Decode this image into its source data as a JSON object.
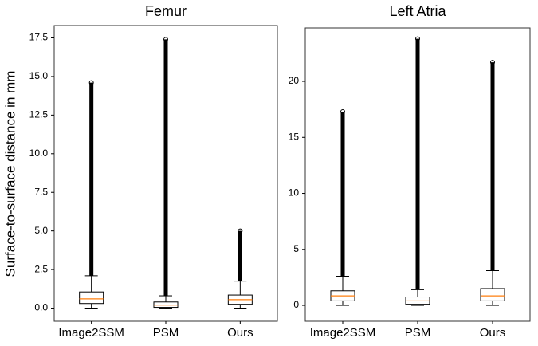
{
  "chart_data": [
    {
      "type": "box",
      "title": "Femur",
      "ylabel": "Surface-to-surface distance in mm",
      "categories": [
        "Image2SSM",
        "PSM",
        "Ours"
      ],
      "boxes": [
        {
          "min": 0,
          "q1": 0.3,
          "median": 0.6,
          "q3": 1.05,
          "max": 2.1,
          "outlier_max": 14.6
        },
        {
          "min": 0,
          "q1": 0.05,
          "median": 0.2,
          "q3": 0.4,
          "max": 0.8,
          "outlier_max": 17.4
        },
        {
          "min": 0,
          "q1": 0.25,
          "median": 0.55,
          "q3": 0.85,
          "max": 1.75,
          "outlier_max": 5.0
        }
      ],
      "ylim": [
        -0.85,
        18.3
      ],
      "yticks": [
        {
          "value": 0,
          "label": "0.0"
        },
        2.5,
        {
          "value": 5,
          "label": "5.0"
        },
        7.5,
        {
          "value": 10,
          "label": "10.0"
        },
        12.5,
        {
          "value": 15,
          "label": "15.0"
        },
        17.5
      ],
      "color": "#000000",
      "median_color": "#ff7f0e"
    },
    {
      "type": "box",
      "title": "Left Atria",
      "categories": [
        "Image2SSM",
        "PSM",
        "Ours"
      ],
      "boxes": [
        {
          "min": 0,
          "q1": 0.4,
          "median": 0.85,
          "q3": 1.3,
          "max": 2.6,
          "outlier_max": 17.3
        },
        {
          "min": 0,
          "q1": 0.1,
          "median": 0.4,
          "q3": 0.75,
          "max": 1.4,
          "outlier_max": 23.8
        },
        {
          "min": 0,
          "q1": 0.4,
          "median": 0.85,
          "q3": 1.5,
          "max": 3.1,
          "outlier_max": 21.7
        }
      ],
      "ylim": [
        -1.42,
        24.77
      ],
      "yticks": [
        0,
        5,
        10,
        15,
        20
      ],
      "color": "#000000",
      "median_color": "#ff7f0e"
    }
  ]
}
